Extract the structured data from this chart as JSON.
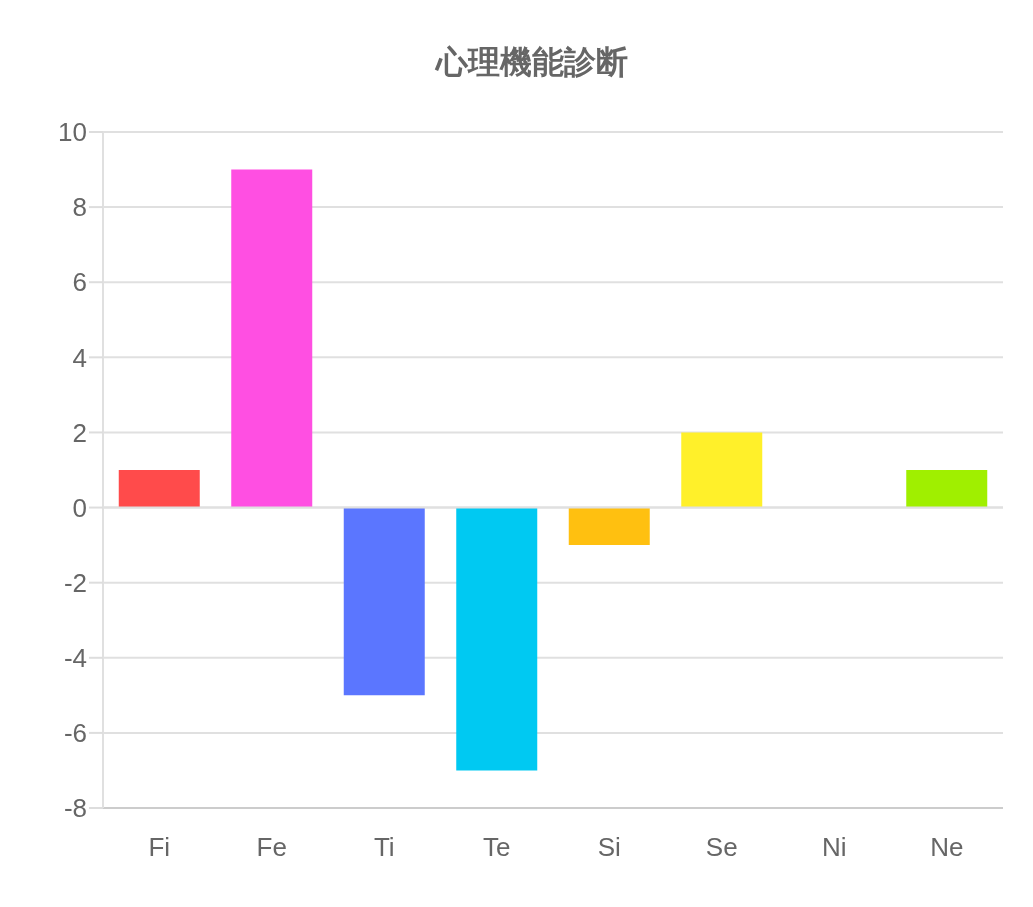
{
  "chart_data": {
    "type": "bar",
    "title": "心理機能診断",
    "categories": [
      "Fi",
      "Fe",
      "Ti",
      "Te",
      "Si",
      "Se",
      "Ni",
      "Ne"
    ],
    "values": [
      1,
      9,
      -5,
      -7,
      -1,
      2,
      0,
      1
    ],
    "colors": [
      "#ff4b4b",
      "#ff4fe2",
      "#5b76ff",
      "#00c9f2",
      "#ffc010",
      "#fff02a",
      "#46d2a0",
      "#a0ef00"
    ],
    "ylim": [
      -8,
      10
    ],
    "yticks": [
      -8,
      -6,
      -4,
      -2,
      0,
      2,
      4,
      6,
      8,
      10
    ],
    "grid": "y",
    "legend": false
  }
}
